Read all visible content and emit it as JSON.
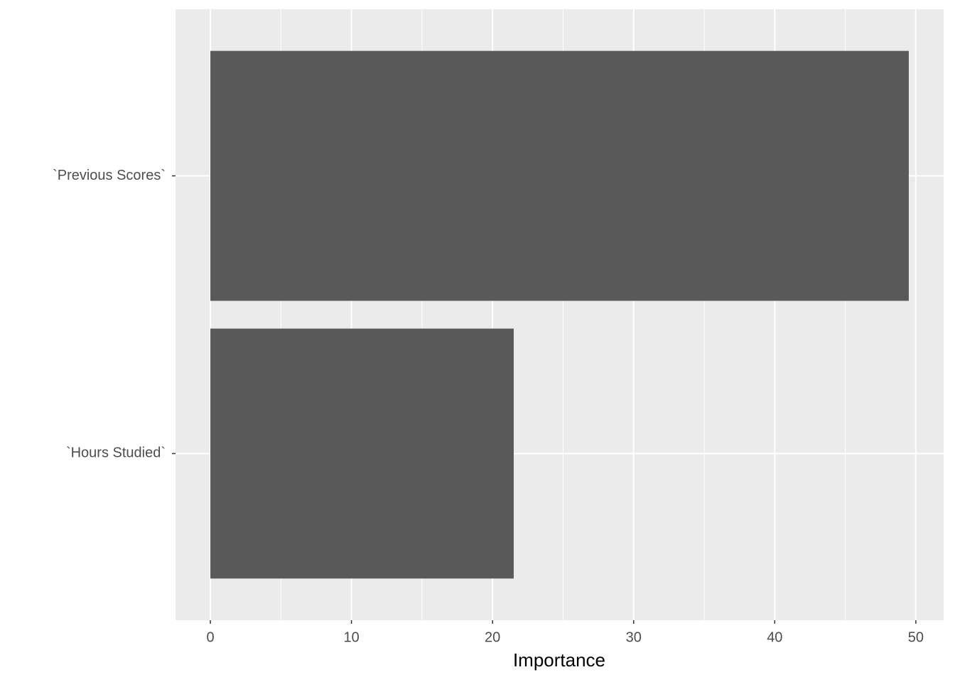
{
  "chart_data": {
    "type": "bar",
    "orientation": "horizontal",
    "categories": [
      "`Hours Studied`",
      "`Previous Scores`"
    ],
    "values": [
      21.5,
      49.5
    ],
    "color": "#595959",
    "x_label": "Importance",
    "xlim": [
      -2.47,
      51.97
    ],
    "xticks": [
      0,
      10,
      20,
      30,
      40,
      50
    ],
    "grid": true,
    "minor_grid": true
  }
}
